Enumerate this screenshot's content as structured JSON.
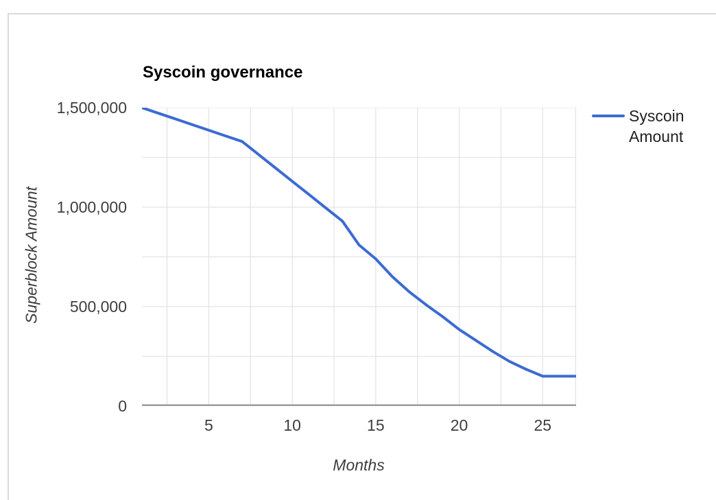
{
  "chart": {
    "title": "Syscoin governance",
    "x_axis_title": "Months",
    "y_axis_title": "Superblock Amount",
    "legend": {
      "label": "Syscoin Amount",
      "position": "right"
    }
  },
  "chart_data": {
    "type": "line",
    "title": "Syscoin governance",
    "xlabel": "Months",
    "ylabel": "Superblock Amount",
    "x": [
      1,
      2,
      3,
      4,
      5,
      6,
      7,
      8,
      9,
      10,
      11,
      12,
      13,
      14,
      15,
      16,
      17,
      18,
      19,
      20,
      21,
      22,
      23,
      24,
      25,
      26,
      27
    ],
    "series": [
      {
        "name": "Syscoin Amount",
        "color": "#3c6bd2",
        "values": [
          1500000,
          1471667,
          1443333,
          1415000,
          1386667,
          1358333,
          1330000,
          1263333,
          1196667,
          1130000,
          1063333,
          996667,
          930000,
          810000,
          740000,
          650000,
          575000,
          510000,
          450000,
          385000,
          330000,
          275000,
          225000,
          185000,
          150000,
          150000,
          150000
        ]
      }
    ],
    "xlim": [
      1,
      27
    ],
    "ylim": [
      0,
      1500000
    ],
    "x_ticks": [
      5,
      10,
      15,
      20,
      25
    ],
    "x_tick_labels": [
      "5",
      "10",
      "15",
      "20",
      "25"
    ],
    "y_ticks": [
      0,
      500000,
      1000000,
      1500000
    ],
    "y_tick_labels": [
      "0",
      "500,000",
      "1,000,000",
      "1,500,000"
    ],
    "x_grid_step": 2.5,
    "y_grid_step": 250000,
    "grid": true,
    "legend_position": "right",
    "gridline_color": "#e4e4e4",
    "baseline_color": "#9b9b9b",
    "line_width": 4
  }
}
